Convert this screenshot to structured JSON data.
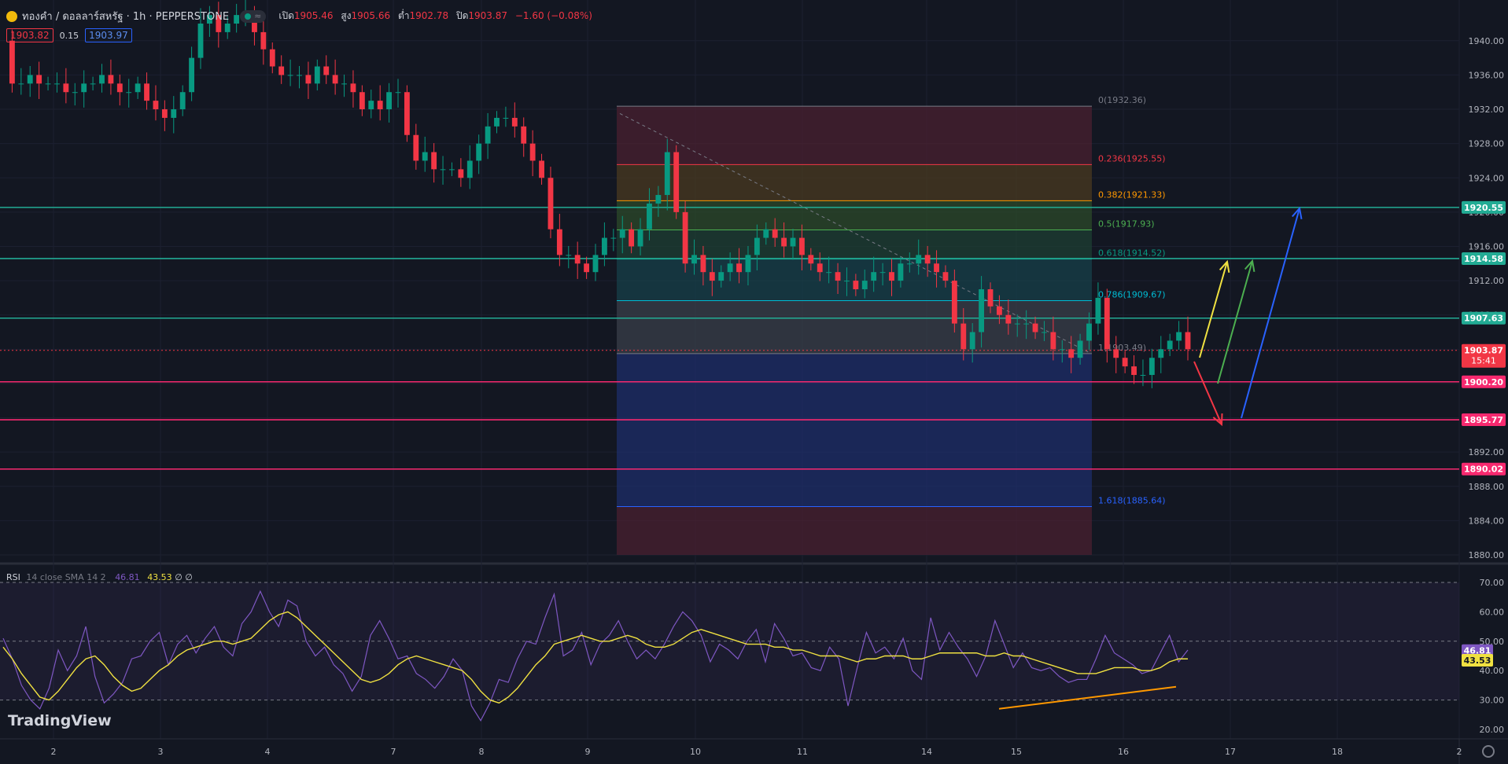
{
  "header": {
    "symbol": "ทองคำ / ดอลลาร์สหรัฐ · 1h · PEPPERSTONE",
    "open_label": "เปิด",
    "open": "1905.46",
    "high_label": "สูง",
    "high": "1905.66",
    "low_label": "ต่ำ",
    "low": "1902.78",
    "close_label": "ปิด",
    "close": "1903.87",
    "change": "−1.60 (−0.08%)",
    "mode_icon": "≈",
    "bid": "1903.82",
    "spread": "0.15",
    "ask": "1903.97"
  },
  "rsi_header": {
    "name": "RSI",
    "params": "14 close SMA 14 2",
    "rsi": "46.81",
    "sma": "43.53",
    "extra": "∅ ∅"
  },
  "logo": "TradingView",
  "colors": {
    "bg": "#131722",
    "up": "#089981",
    "down": "#f23645",
    "rsi": "#7e57c2",
    "sma": "#f0e141"
  },
  "chart_data": [
    {
      "type": "candlestick",
      "title": "ทองคำ / ดอลลาร์สหรัฐ · 1h · PEPPERSTONE",
      "ylim": [
        1880,
        1942
      ],
      "y_ticks": [
        "1940.00",
        "1936.00",
        "1932.00",
        "1928.00",
        "1924.00",
        "1920.00",
        "1916.00",
        "1912.00",
        "1908.00",
        "1904.00",
        "1900.00",
        "1896.00",
        "1892.00",
        "1888.00",
        "1884.00",
        "1880.00"
      ],
      "x_ticks": [
        "2",
        "3",
        "4",
        "7",
        "8",
        "9",
        "10",
        "11",
        "14",
        "15",
        "16",
        "17",
        "18",
        "2"
      ],
      "close_path": [
        1940,
        1935,
        1935,
        1936,
        1935,
        1935,
        1935,
        1934,
        1934,
        1935,
        1935,
        1936,
        1935,
        1934,
        1934,
        1935,
        1933,
        1932,
        1931,
        1932,
        1934,
        1938,
        1942,
        1943,
        1941,
        1942,
        1943,
        1943,
        1941,
        1939,
        1937,
        1936,
        1936,
        1936,
        1935,
        1937,
        1936,
        1935,
        1935,
        1934,
        1932,
        1933,
        1932,
        1934,
        1934,
        1929,
        1926,
        1927,
        1925,
        1925,
        1925,
        1924,
        1926,
        1928,
        1930,
        1931,
        1931,
        1930,
        1928,
        1926,
        1924,
        1918,
        1915,
        1915,
        1914,
        1913,
        1915,
        1917,
        1917,
        1918,
        1916,
        1918,
        1921,
        1922,
        1927,
        1920,
        1914,
        1915,
        1913,
        1912,
        1913,
        1914,
        1913,
        1915,
        1917,
        1918,
        1917,
        1916,
        1917,
        1915,
        1914,
        1913,
        1913,
        1912,
        1912,
        1911,
        1912,
        1913,
        1913,
        1912,
        1914,
        1914,
        1915,
        1914,
        1913,
        1912,
        1907,
        1904,
        1906,
        1911,
        1909,
        1908,
        1907,
        1907,
        1907,
        1906,
        1906,
        1904,
        1904,
        1903,
        1905,
        1907,
        1910,
        1904,
        1903,
        1902,
        1901,
        1901,
        1903,
        1904,
        1905,
        1906,
        1904
      ],
      "price_lines": [
        {
          "value": "1920.55",
          "color": "#22ab94"
        },
        {
          "value": "1914.58",
          "color": "#22ab94"
        },
        {
          "value": "1907.63",
          "color": "#22ab94"
        },
        {
          "value": "1903.87",
          "color": "#f23645",
          "sub": "15:41"
        },
        {
          "value": "1900.20",
          "color": "#f7296f"
        },
        {
          "value": "1895.77",
          "color": "#f7296f"
        },
        {
          "value": "1890.02",
          "color": "#f7296f"
        }
      ],
      "fib_levels": [
        {
          "label": "0(1932.36)",
          "value": 1932.36,
          "color": "#787b86"
        },
        {
          "label": "0.236(1925.55)",
          "value": 1925.55,
          "color": "#f23645"
        },
        {
          "label": "0.382(1921.33)",
          "value": 1921.33,
          "color": "#ff9800"
        },
        {
          "label": "0.5(1917.93)",
          "value": 1917.93,
          "color": "#4caf50"
        },
        {
          "label": "0.618(1914.52)",
          "value": 1914.52,
          "color": "#089981"
        },
        {
          "label": "0.786(1909.67)",
          "value": 1909.67,
          "color": "#00bcd4"
        },
        {
          "label": "1(1903.49)",
          "value": 1903.49,
          "color": "#787b86"
        },
        {
          "label": "1.618(1885.64)",
          "value": 1885.64,
          "color": "#2962ff"
        }
      ]
    },
    {
      "type": "line",
      "title": "RSI 14 close SMA 14 2",
      "ylim": [
        20,
        70
      ],
      "y_ticks": [
        "70.00",
        "60.00",
        "50.00",
        "40.00",
        "30.00",
        "20.00"
      ],
      "bands": [
        30,
        50,
        70
      ],
      "series": [
        {
          "name": "RSI",
          "color": "#7e57c2",
          "last": "46.81",
          "values": [
            51,
            44,
            35,
            30,
            27,
            34,
            47,
            40,
            45,
            55,
            38,
            29,
            32,
            36,
            44,
            45,
            50,
            53,
            42,
            49,
            52,
            46,
            51,
            55,
            48,
            45,
            56,
            60,
            67,
            60,
            55,
            64,
            62,
            50,
            45,
            48,
            42,
            39,
            33,
            38,
            52,
            57,
            51,
            44,
            45,
            39,
            37,
            34,
            38,
            44,
            40,
            28,
            23,
            29,
            37,
            36,
            44,
            50,
            49,
            58,
            66,
            45,
            47,
            53,
            42,
            49,
            52,
            57,
            50,
            44,
            47,
            44,
            49,
            55,
            60,
            57,
            52,
            43,
            49,
            47,
            44,
            50,
            54,
            43,
            56,
            51,
            45,
            46,
            41,
            40,
            48,
            44,
            28,
            41,
            53,
            46,
            48,
            44,
            51,
            40,
            37,
            58,
            47,
            53,
            48,
            44,
            38,
            45,
            57,
            49,
            41,
            46,
            41,
            40,
            41,
            38,
            36,
            37,
            37,
            44,
            52,
            46,
            44,
            42,
            39,
            40,
            46,
            52,
            43,
            47
          ]
        },
        {
          "name": "SMA",
          "color": "#f0e141",
          "last": "43.53",
          "values": [
            48,
            44,
            39,
            35,
            31,
            30,
            33,
            37,
            41,
            44,
            45,
            42,
            38,
            35,
            33,
            34,
            37,
            40,
            42,
            45,
            47,
            48,
            49,
            50,
            50,
            49,
            50,
            51,
            54,
            57,
            59,
            60,
            58,
            55,
            52,
            49,
            46,
            43,
            40,
            37,
            36,
            37,
            39,
            42,
            44,
            45,
            44,
            43,
            42,
            41,
            40,
            37,
            33,
            30,
            29,
            31,
            34,
            38,
            42,
            45,
            49,
            50,
            51,
            52,
            51,
            50,
            50,
            51,
            52,
            51,
            49,
            48,
            48,
            49,
            51,
            53,
            54,
            53,
            52,
            51,
            50,
            49,
            49,
            49,
            48,
            48,
            47,
            47,
            46,
            45,
            45,
            45,
            44,
            43,
            44,
            44,
            45,
            45,
            45,
            44,
            44,
            45,
            46,
            46,
            46,
            46,
            46,
            45,
            45,
            46,
            45,
            45,
            44,
            43,
            42,
            41,
            40,
            39,
            39,
            39,
            40,
            41,
            41,
            41,
            40,
            40,
            41,
            43,
            44,
            44
          ]
        }
      ]
    }
  ]
}
